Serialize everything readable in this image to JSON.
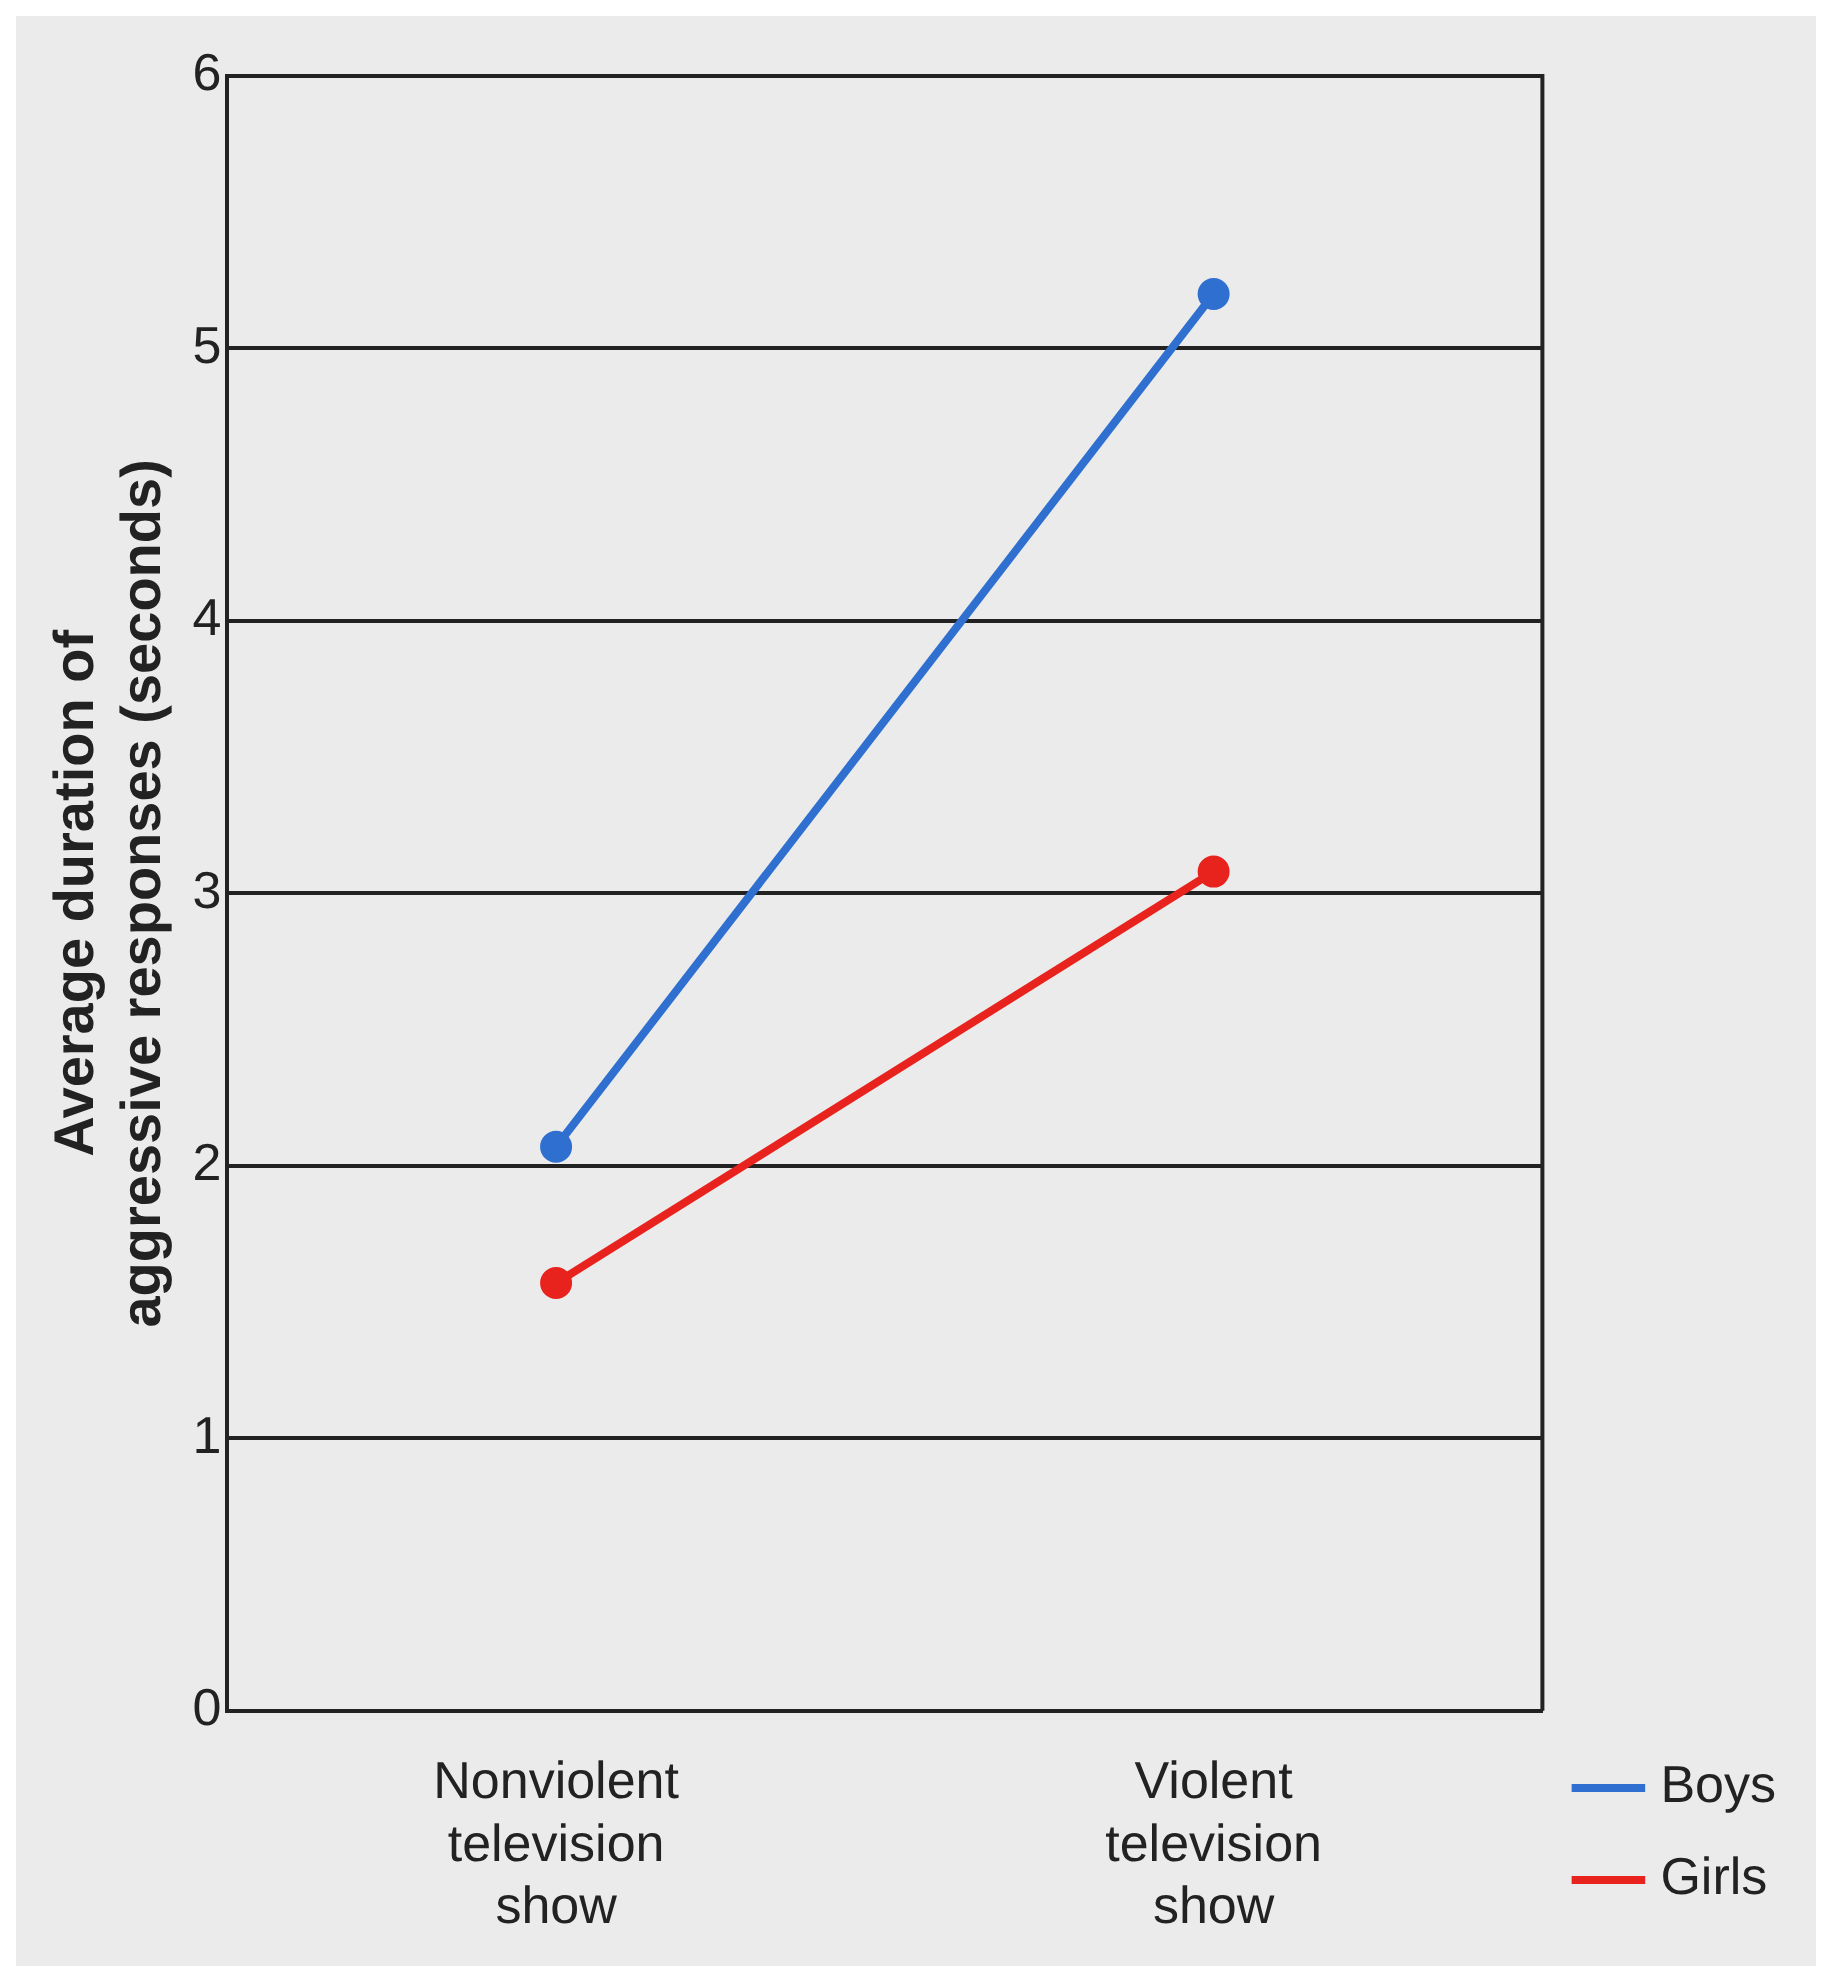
{
  "chart_data": {
    "type": "line",
    "ylabel": "Average duration of aggressive responses (seconds)",
    "categories": [
      "Nonviolent television show",
      "Violent television show"
    ],
    "series": [
      {
        "name": "Boys",
        "color": "#2f6fd0",
        "values": [
          2.07,
          5.2
        ]
      },
      {
        "name": "Girls",
        "color": "#e8231e",
        "values": [
          1.57,
          3.08
        ]
      }
    ],
    "ylim": [
      0,
      6
    ],
    "yticks": [
      0,
      1,
      2,
      3,
      4,
      5,
      6
    ],
    "grid": "y",
    "legend": "bottom right",
    "marker": "circle",
    "line_style": "solid"
  }
}
